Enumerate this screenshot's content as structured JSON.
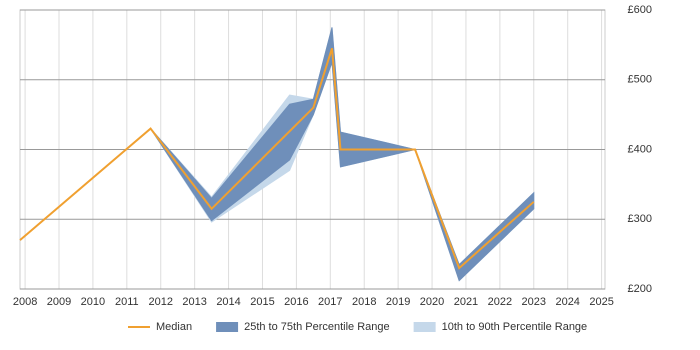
{
  "chart_data": {
    "type": "line",
    "xlim": [
      2007.85,
      2025.1
    ],
    "xticks": [
      2008,
      2009,
      2010,
      2011,
      2012,
      2013,
      2014,
      2015,
      2016,
      2017,
      2018,
      2019,
      2020,
      2021,
      2022,
      2023,
      2024,
      2025
    ],
    "ylim": [
      200,
      600
    ],
    "yticks": [
      {
        "value": 200,
        "label": "£200"
      },
      {
        "value": 300,
        "label": "£300"
      },
      {
        "value": 400,
        "label": "£400"
      },
      {
        "value": 500,
        "label": "£500"
      },
      {
        "value": 600,
        "label": "£600"
      }
    ],
    "grid": true,
    "legend": "bottom",
    "series": [
      {
        "name": "Median",
        "kind": "line",
        "color": "#f0a030",
        "x": [
          2007.85,
          2011.7,
          2013.5,
          2016.5,
          2017.05,
          2017.3,
          2019.5,
          2020.8,
          2023.0
        ],
        "values": [
          270,
          430,
          315,
          460,
          545,
          400,
          400,
          230,
          325
        ]
      },
      {
        "name": "25th to 75th Percentile Range",
        "kind": "band",
        "color": "#6f8fba",
        "x": [
          2011.7,
          2013.5,
          2015.8,
          2016.5,
          2017.05,
          2017.3,
          2019.5,
          2020.8,
          2023.0
        ],
        "lower": [
          430,
          298,
          385,
          450,
          525,
          375,
          400,
          212,
          315
        ],
        "upper": [
          430,
          330,
          465,
          472,
          575,
          425,
          400,
          235,
          338
        ]
      },
      {
        "name": "10th to 90th Percentile Range",
        "kind": "band",
        "color": "#c5d8ea",
        "x": [
          2011.7,
          2013.5,
          2015.8,
          2016.5,
          2017.05,
          2017.3,
          2019.5,
          2020.8,
          2023.0
        ],
        "lower": [
          430,
          296,
          370,
          450,
          525,
          375,
          400,
          212,
          315
        ],
        "upper": [
          430,
          332,
          478,
          472,
          575,
          425,
          400,
          235,
          338
        ]
      }
    ]
  }
}
